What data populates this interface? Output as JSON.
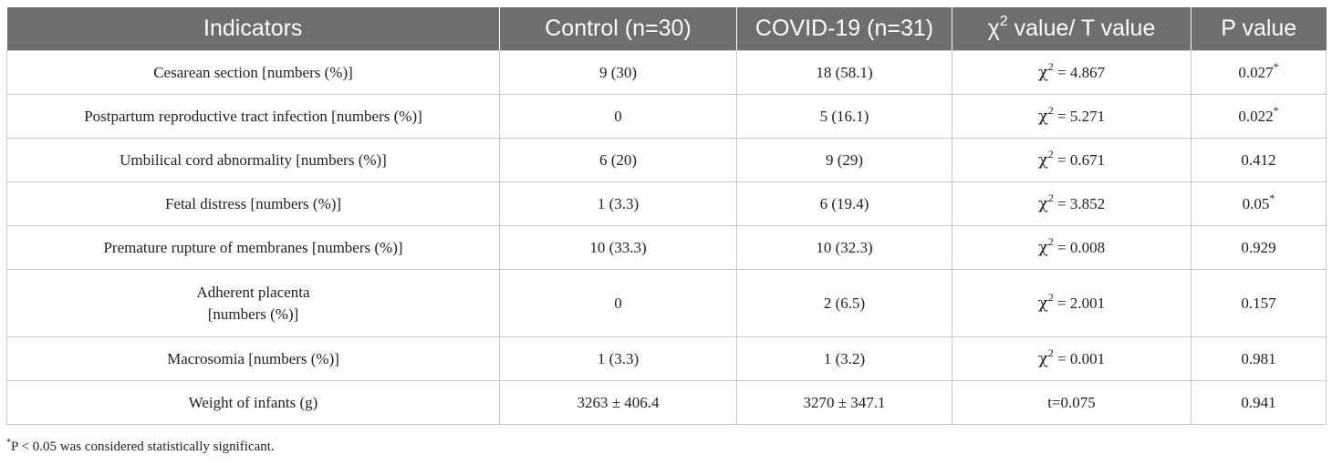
{
  "table": {
    "headers": {
      "indicators": "Indicators",
      "control": "Control (n=30)",
      "covid": "COVID-19 (n=31)",
      "stat_symbol": "χ",
      "stat_sup": "2",
      "stat_rest": " value/ T value",
      "p_value": "P value"
    },
    "rows": [
      {
        "indicator": "Cesarean section [numbers (%)]",
        "control": "9 (30)",
        "covid": "18 (58.1)",
        "stat_prefix": "χ",
        "stat_sup": "2",
        "stat_value": " = 4.867",
        "p": "0.027",
        "p_mark": "*"
      },
      {
        "indicator": "Postpartum reproductive tract infection [numbers (%)]",
        "control": "0",
        "covid": "5 (16.1)",
        "stat_prefix": "χ",
        "stat_sup": "2",
        "stat_value": " = 5.271",
        "p": "0.022",
        "p_mark": "*"
      },
      {
        "indicator": "Umbilical cord abnormality [numbers (%)]",
        "control": "6 (20)",
        "covid": "9 (29)",
        "stat_prefix": "χ",
        "stat_sup": "2",
        "stat_value": " = 0.671",
        "p": "0.412",
        "p_mark": ""
      },
      {
        "indicator": "Fetal distress [numbers (%)]",
        "control": "1 (3.3)",
        "covid": "6 (19.4)",
        "stat_prefix": "χ",
        "stat_sup": "2",
        "stat_value": " = 3.852",
        "p": "0.05",
        "p_mark": "*"
      },
      {
        "indicator": "Premature rupture of membranes [numbers (%)]",
        "control": "10 (33.3)",
        "covid": "10 (32.3)",
        "stat_prefix": "χ",
        "stat_sup": "2",
        "stat_value": " = 0.008",
        "p": "0.929",
        "p_mark": ""
      },
      {
        "indicator_line1": "Adherent placenta",
        "indicator_line2": "[numbers (%)]",
        "control": "0",
        "covid": "2 (6.5)",
        "stat_prefix": "χ",
        "stat_sup": "2",
        "stat_value": " = 2.001",
        "p": "0.157",
        "p_mark": ""
      },
      {
        "indicator": "Macrosomia [numbers (%)]",
        "control": "1 (3.3)",
        "covid": "1 (3.2)",
        "stat_prefix": "χ",
        "stat_sup": "2",
        "stat_value": " = 0.001",
        "p": "0.981",
        "p_mark": ""
      },
      {
        "indicator": "Weight of infants (g)",
        "control": "3263 ± 406.4",
        "covid": "3270 ± 347.1",
        "stat_value": "t=0.075",
        "p": "0.941",
        "p_mark": ""
      }
    ]
  },
  "footnote": {
    "mark": "*",
    "text": "P < 0.05 was considered statistically significant."
  }
}
